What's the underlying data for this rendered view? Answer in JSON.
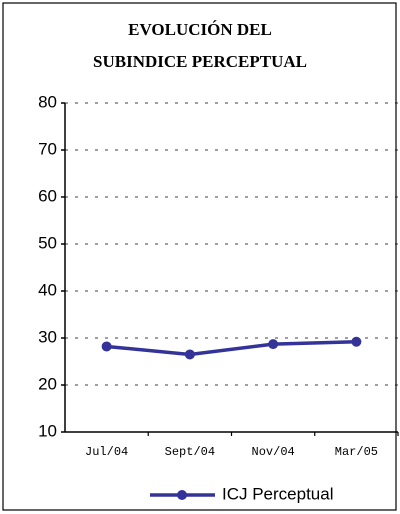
{
  "chart_data": {
    "type": "line",
    "title": "EVOLUCIÓN DEL SUBINDICE PERCEPTUAL",
    "categories": [
      "Jul/04",
      "Sept/04",
      "Nov/04",
      "Mar/05"
    ],
    "series": [
      {
        "name": "ICJ Perceptual",
        "color": "#333399",
        "values": [
          28.2,
          26.5,
          28.7,
          29.2
        ]
      }
    ],
    "ylim": [
      10,
      80
    ],
    "yticks": [
      10,
      20,
      30,
      40,
      50,
      60,
      70,
      80
    ],
    "grid": true,
    "legend": "bottom"
  }
}
